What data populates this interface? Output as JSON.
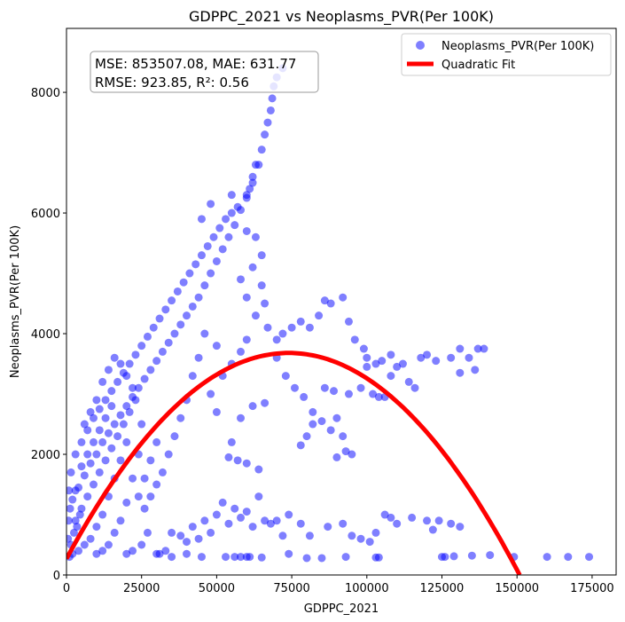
{
  "chart_data": {
    "type": "scatter",
    "title": "GDPPC_2021 vs Neoplasms_PVR(Per 100K)",
    "xlabel": "GDPPC_2021",
    "ylabel": "Neoplasms_PVR(Per 100K)",
    "xlim": [
      0,
      183000
    ],
    "ylim": [
      0,
      9060
    ],
    "xticks": [
      0,
      25000,
      50000,
      75000,
      100000,
      125000,
      150000,
      175000
    ],
    "xtick_labels": [
      "0",
      "25000",
      "50000",
      "75000",
      "100000",
      "125000",
      "150000",
      "175000"
    ],
    "yticks": [
      0,
      2000,
      4000,
      6000,
      8000
    ],
    "ytick_labels": [
      "0",
      "2000",
      "4000",
      "6000",
      "8000"
    ],
    "grid": false,
    "legend": {
      "placement": "top-right",
      "entries": [
        "Neoplasms_PVR(Per 100K)",
        "Quadratic Fit"
      ]
    },
    "annotation": {
      "line1": "MSE: 853507.08, MAE: 631.77",
      "line2": "RMSE: 923.85, R²: 0.56"
    },
    "colors": {
      "scatter": "#0000ff",
      "fit": "#ff0000"
    },
    "fit": {
      "name": "Quadratic Fit",
      "vertex_x": 74000,
      "vertex_y": 3680,
      "intercept": 270
    },
    "series": [
      {
        "name": "Neoplasms_PVR(Per 100K)",
        "points": [
          [
            72000,
            8400
          ],
          [
            70000,
            8250
          ],
          [
            69000,
            8100
          ],
          [
            68500,
            7900
          ],
          [
            68000,
            7700
          ],
          [
            67000,
            7500
          ],
          [
            66000,
            7300
          ],
          [
            65000,
            7050
          ],
          [
            63000,
            6800
          ],
          [
            62000,
            6600
          ],
          [
            61000,
            6400
          ],
          [
            60000,
            6250
          ],
          [
            57000,
            6100
          ],
          [
            55000,
            6000
          ],
          [
            53000,
            5900
          ],
          [
            51000,
            5750
          ],
          [
            49000,
            5600
          ],
          [
            47000,
            5450
          ],
          [
            45000,
            5300
          ],
          [
            43000,
            5150
          ],
          [
            41000,
            5000
          ],
          [
            39000,
            4850
          ],
          [
            37000,
            4700
          ],
          [
            35000,
            4550
          ],
          [
            33000,
            4400
          ],
          [
            31000,
            4250
          ],
          [
            29000,
            4100
          ],
          [
            27000,
            3950
          ],
          [
            25000,
            3800
          ],
          [
            23000,
            3650
          ],
          [
            21000,
            3500
          ],
          [
            19000,
            3350
          ],
          [
            17000,
            3200
          ],
          [
            15000,
            3050
          ],
          [
            13000,
            2900
          ],
          [
            11000,
            2750
          ],
          [
            9000,
            2600
          ],
          [
            7000,
            2400
          ],
          [
            5000,
            2200
          ],
          [
            3000,
            2000
          ],
          [
            1500,
            1700
          ],
          [
            800,
            1400
          ],
          [
            64000,
            6800
          ],
          [
            62000,
            6500
          ],
          [
            60000,
            6300
          ],
          [
            58000,
            6050
          ],
          [
            56000,
            5800
          ],
          [
            54000,
            5600
          ],
          [
            52000,
            5400
          ],
          [
            50000,
            5200
          ],
          [
            48000,
            5000
          ],
          [
            46000,
            4800
          ],
          [
            44000,
            4600
          ],
          [
            42000,
            4450
          ],
          [
            40000,
            4300
          ],
          [
            38000,
            4150
          ],
          [
            36000,
            4000
          ],
          [
            34000,
            3850
          ],
          [
            32000,
            3700
          ],
          [
            30000,
            3550
          ],
          [
            28000,
            3400
          ],
          [
            26000,
            3250
          ],
          [
            24000,
            3100
          ],
          [
            22000,
            2950
          ],
          [
            20000,
            2800
          ],
          [
            18000,
            2650
          ],
          [
            16000,
            2500
          ],
          [
            14000,
            2350
          ],
          [
            12000,
            2200
          ],
          [
            10000,
            2000
          ],
          [
            8000,
            1850
          ],
          [
            6000,
            1650
          ],
          [
            4000,
            1450
          ],
          [
            2000,
            1250
          ],
          [
            45000,
            5900
          ],
          [
            48000,
            6150
          ],
          [
            55000,
            6300
          ],
          [
            60000,
            5700
          ],
          [
            63000,
            5600
          ],
          [
            65000,
            5300
          ],
          [
            62000,
            5100
          ],
          [
            58000,
            4900
          ],
          [
            60000,
            4600
          ],
          [
            65000,
            4800
          ],
          [
            66000,
            4500
          ],
          [
            63000,
            4300
          ],
          [
            67000,
            4100
          ],
          [
            70000,
            3900
          ],
          [
            72000,
            4000
          ],
          [
            75000,
            4100
          ],
          [
            78000,
            4200
          ],
          [
            81000,
            4100
          ],
          [
            84000,
            4300
          ],
          [
            86000,
            4550
          ],
          [
            88000,
            4500
          ],
          [
            92000,
            4600
          ],
          [
            94000,
            4200
          ],
          [
            96000,
            3900
          ],
          [
            99000,
            3750
          ],
          [
            100000,
            3600
          ],
          [
            103000,
            3500
          ],
          [
            105000,
            3550
          ],
          [
            108000,
            3300
          ],
          [
            110000,
            3450
          ],
          [
            112000,
            3500
          ],
          [
            118000,
            3600
          ],
          [
            120000,
            3650
          ],
          [
            123000,
            3550
          ],
          [
            128000,
            3600
          ],
          [
            131000,
            3750
          ],
          [
            134000,
            3600
          ],
          [
            137000,
            3750
          ],
          [
            139000,
            3750
          ],
          [
            131000,
            3350
          ],
          [
            136000,
            3400
          ],
          [
            70000,
            3600
          ],
          [
            73000,
            3300
          ],
          [
            76000,
            3100
          ],
          [
            79000,
            2950
          ],
          [
            82000,
            2700
          ],
          [
            85000,
            2550
          ],
          [
            88000,
            2400
          ],
          [
            90000,
            2600
          ],
          [
            92000,
            2300
          ],
          [
            93000,
            2050
          ],
          [
            95000,
            2000
          ],
          [
            90000,
            1950
          ],
          [
            80000,
            2300
          ],
          [
            78000,
            2150
          ],
          [
            82000,
            2500
          ],
          [
            86000,
            3100
          ],
          [
            89000,
            3050
          ],
          [
            94000,
            3000
          ],
          [
            98000,
            3100
          ],
          [
            102000,
            3000
          ],
          [
            104000,
            2950
          ],
          [
            106000,
            2950
          ],
          [
            114000,
            3200
          ],
          [
            116000,
            3100
          ],
          [
            108000,
            3650
          ],
          [
            100000,
            3450
          ],
          [
            54000,
            1950
          ],
          [
            57000,
            1900
          ],
          [
            60000,
            1850
          ],
          [
            64000,
            1750
          ],
          [
            55000,
            2200
          ],
          [
            58000,
            2600
          ],
          [
            62000,
            2800
          ],
          [
            66000,
            2850
          ],
          [
            50000,
            2700
          ],
          [
            48000,
            3000
          ],
          [
            52000,
            3300
          ],
          [
            55000,
            3500
          ],
          [
            58000,
            3700
          ],
          [
            60000,
            3900
          ],
          [
            50000,
            3800
          ],
          [
            46000,
            4000
          ],
          [
            44000,
            3600
          ],
          [
            42000,
            3300
          ],
          [
            40000,
            2900
          ],
          [
            38000,
            2600
          ],
          [
            36000,
            2300
          ],
          [
            34000,
            2000
          ],
          [
            32000,
            1700
          ],
          [
            30000,
            1500
          ],
          [
            28000,
            1300
          ],
          [
            26000,
            1100
          ],
          [
            22000,
            3100
          ],
          [
            20000,
            3300
          ],
          [
            18000,
            3500
          ],
          [
            16000,
            3600
          ],
          [
            14000,
            3400
          ],
          [
            12000,
            3200
          ],
          [
            10000,
            2900
          ],
          [
            8000,
            2700
          ],
          [
            6000,
            2500
          ],
          [
            20000,
            2200
          ],
          [
            18000,
            1900
          ],
          [
            16000,
            1600
          ],
          [
            14000,
            1300
          ],
          [
            12000,
            1000
          ],
          [
            10000,
            800
          ],
          [
            8000,
            600
          ],
          [
            6000,
            500
          ],
          [
            4000,
            400
          ],
          [
            2000,
            350
          ],
          [
            1000,
            300
          ],
          [
            3000,
            900
          ],
          [
            5000,
            1100
          ],
          [
            7000,
            1300
          ],
          [
            9000,
            1500
          ],
          [
            11000,
            1700
          ],
          [
            13000,
            1900
          ],
          [
            15000,
            2100
          ],
          [
            17000,
            2300
          ],
          [
            19000,
            2500
          ],
          [
            21000,
            2700
          ],
          [
            23000,
            2900
          ],
          [
            25000,
            2500
          ],
          [
            24000,
            2000
          ],
          [
            22000,
            1600
          ],
          [
            20000,
            1200
          ],
          [
            18000,
            900
          ],
          [
            16000,
            700
          ],
          [
            14000,
            500
          ],
          [
            12000,
            400
          ],
          [
            10000,
            350
          ],
          [
            1500,
            500
          ],
          [
            2500,
            700
          ],
          [
            3500,
            800
          ],
          [
            4500,
            1000
          ],
          [
            500,
            600
          ],
          [
            700,
            900
          ],
          [
            1200,
            1100
          ],
          [
            3000,
            1400
          ],
          [
            5000,
            1800
          ],
          [
            7000,
            2000
          ],
          [
            9000,
            2200
          ],
          [
            11000,
            2400
          ],
          [
            13000,
            2600
          ],
          [
            15000,
            2800
          ],
          [
            24000,
            1300
          ],
          [
            26000,
            1600
          ],
          [
            28000,
            1900
          ],
          [
            30000,
            2200
          ],
          [
            27000,
            700
          ],
          [
            25000,
            500
          ],
          [
            22000,
            400
          ],
          [
            20000,
            350
          ],
          [
            30000,
            350
          ],
          [
            33000,
            400
          ],
          [
            35000,
            700
          ],
          [
            38000,
            650
          ],
          [
            40000,
            550
          ],
          [
            42000,
            800
          ],
          [
            44000,
            600
          ],
          [
            46000,
            900
          ],
          [
            48000,
            700
          ],
          [
            50000,
            1000
          ],
          [
            52000,
            1200
          ],
          [
            54000,
            850
          ],
          [
            56000,
            1100
          ],
          [
            58000,
            950
          ],
          [
            60000,
            1050
          ],
          [
            62000,
            800
          ],
          [
            64000,
            1300
          ],
          [
            66000,
            900
          ],
          [
            68000,
            850
          ],
          [
            70000,
            900
          ],
          [
            72000,
            650
          ],
          [
            74000,
            1000
          ],
          [
            78000,
            850
          ],
          [
            81000,
            650
          ],
          [
            87000,
            800
          ],
          [
            92000,
            850
          ],
          [
            95000,
            650
          ],
          [
            98000,
            600
          ],
          [
            101000,
            550
          ],
          [
            103000,
            700
          ],
          [
            106000,
            1000
          ],
          [
            108000,
            950
          ],
          [
            110000,
            850
          ],
          [
            115000,
            950
          ],
          [
            120000,
            900
          ],
          [
            122000,
            750
          ],
          [
            124000,
            900
          ],
          [
            128000,
            850
          ],
          [
            131000,
            800
          ],
          [
            31000,
            350
          ],
          [
            35000,
            300
          ],
          [
            40000,
            350
          ],
          [
            45000,
            300
          ],
          [
            53000,
            300
          ],
          [
            56000,
            300
          ],
          [
            58000,
            300
          ],
          [
            60000,
            300
          ],
          [
            61000,
            300
          ],
          [
            65000,
            290
          ],
          [
            74000,
            350
          ],
          [
            80000,
            280
          ],
          [
            85000,
            280
          ],
          [
            93000,
            300
          ],
          [
            103000,
            290
          ],
          [
            104000,
            290
          ],
          [
            125000,
            300
          ],
          [
            126000,
            300
          ],
          [
            129000,
            310
          ],
          [
            135000,
            320
          ],
          [
            141000,
            330
          ],
          [
            149000,
            300
          ],
          [
            160000,
            300
          ],
          [
            167000,
            300
          ],
          [
            174000,
            300
          ]
        ]
      }
    ]
  }
}
